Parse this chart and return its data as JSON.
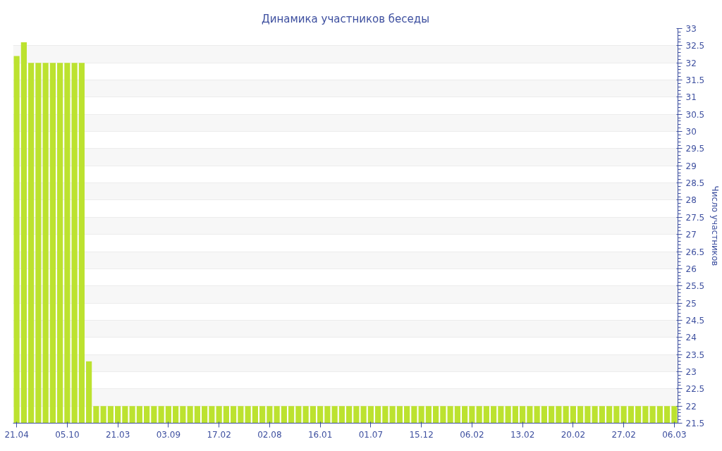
{
  "chart_data": {
    "type": "bar",
    "title": "Динамика участников беседы",
    "ylabel": "Число участников",
    "categories": [
      "21.04",
      null,
      null,
      null,
      null,
      null,
      null,
      "05.10",
      null,
      null,
      null,
      null,
      null,
      null,
      "21.03",
      null,
      null,
      null,
      null,
      null,
      null,
      "03.09",
      null,
      null,
      null,
      null,
      null,
      null,
      "17.02",
      null,
      null,
      null,
      null,
      null,
      null,
      "02.08",
      null,
      null,
      null,
      null,
      null,
      null,
      "16.01",
      null,
      null,
      null,
      null,
      null,
      null,
      "01.07",
      null,
      null,
      null,
      null,
      null,
      null,
      "15.12",
      null,
      null,
      null,
      null,
      null,
      null,
      "06.02",
      null,
      null,
      null,
      null,
      null,
      null,
      "13.02",
      null,
      null,
      null,
      null,
      null,
      null,
      "20.02",
      null,
      null,
      null,
      null,
      null,
      null,
      "27.02",
      null,
      null,
      null,
      null,
      null,
      null,
      "06.03"
    ],
    "values": [
      32.2,
      32.6,
      32,
      32,
      32,
      32,
      32,
      32,
      32,
      32,
      23.3,
      22,
      22,
      22,
      22,
      22,
      22,
      22,
      22,
      22,
      22,
      22,
      22,
      22,
      22,
      22,
      22,
      22,
      22,
      22,
      22,
      22,
      22,
      22,
      22,
      22,
      22,
      22,
      22,
      22,
      22,
      22,
      22,
      22,
      22,
      22,
      22,
      22,
      22,
      22,
      22,
      22,
      22,
      22,
      22,
      22,
      22,
      22,
      22,
      22,
      22,
      22,
      22,
      22,
      22,
      22,
      22,
      22,
      22,
      22,
      22,
      22,
      22,
      22,
      22,
      22,
      22,
      22,
      22,
      22,
      22,
      22,
      22,
      22,
      22,
      22,
      22,
      22,
      22,
      22,
      22,
      22
    ],
    "color": "#bce22f",
    "ylim": [
      21.5,
      33
    ],
    "yticks": [
      21.5,
      22,
      22.5,
      23,
      23.5,
      24,
      24.5,
      25,
      25.5,
      26,
      26.5,
      27,
      27.5,
      28,
      28.5,
      29,
      29.5,
      30,
      30.5,
      31,
      31.5,
      32,
      32.5,
      33
    ],
    "grid": "y"
  }
}
